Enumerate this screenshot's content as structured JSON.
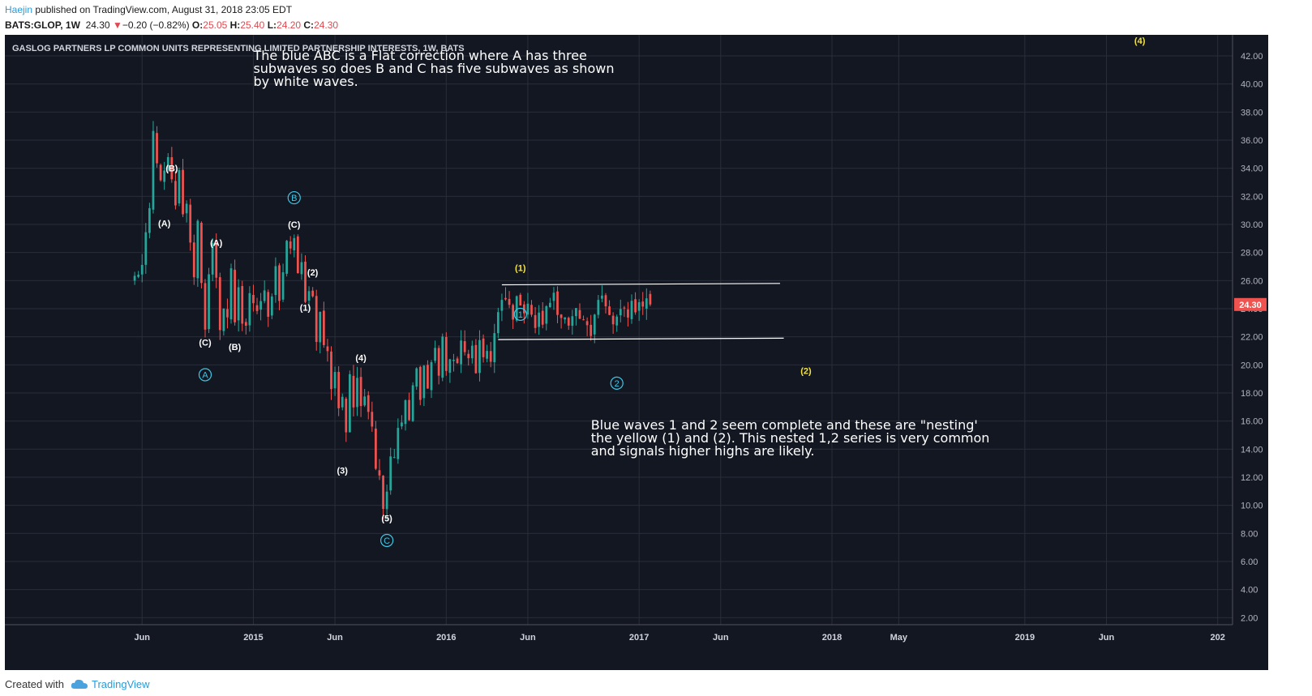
{
  "header": {
    "author": "Haejin",
    "published_text": " published on TradingView.com, August 31, 2018 23:05 EDT",
    "symbol": "BATS:GLOP, 1W",
    "last": "24.30",
    "change_arrow": "▼",
    "change": "−0.20 (−0.82%)",
    "o_label": "O:",
    "o_value": "25.05",
    "h_label": "H:",
    "h_value": "25.40",
    "l_label": "L:",
    "l_value": "24.20",
    "c_label": "C:",
    "c_value": "24.30"
  },
  "footer": {
    "created_with": "Created with",
    "brand": "TradingView"
  },
  "colors": {
    "background": "#131722",
    "up": "#26a69a",
    "down": "#ef5350",
    "grid": "#2a2e39",
    "axis_text": "#b2b5be",
    "blue_label": "#3cc8e6",
    "yellow_label": "#f5e342",
    "last_price_bg": "#ef5350"
  },
  "chart_data": {
    "type": "candlestick",
    "title": "GASLOG PARTNERS LP COMMON UNITS REPRESENTING LIMITED PARTNERSHIP INTERESTS, 1W, BATS",
    "y_ticks": [
      "2.00",
      "4.00",
      "6.00",
      "8.00",
      "10.00",
      "12.00",
      "14.00",
      "16.00",
      "18.00",
      "20.00",
      "22.00",
      "24.00",
      "26.00",
      "28.00",
      "30.00",
      "32.00",
      "34.00",
      "36.00",
      "38.00",
      "40.00",
      "42.00"
    ],
    "ylim": [
      1.5,
      43.5
    ],
    "x_ticks": [
      {
        "label": "Jun",
        "t": 0
      },
      {
        "label": "2015",
        "t": 30
      },
      {
        "label": "Jun",
        "t": 52
      },
      {
        "label": "2016",
        "t": 82
      },
      {
        "label": "Jun",
        "t": 104
      },
      {
        "label": "2017",
        "t": 134
      },
      {
        "label": "Jun",
        "t": 156
      },
      {
        "label": "2018",
        "t": 186
      },
      {
        "label": "May",
        "t": 204
      },
      {
        "label": "2019",
        "t": 238
      },
      {
        "label": "Jun",
        "t": 260
      },
      {
        "label": "202",
        "t": 290
      }
    ],
    "t_range": [
      -37,
      294
    ],
    "last_price": "24.30",
    "anchors": [
      [
        -2,
        26.2
      ],
      [
        0,
        27
      ],
      [
        2,
        31
      ],
      [
        3,
        36.5
      ],
      [
        5,
        32.8
      ],
      [
        7,
        34.5
      ],
      [
        9,
        31.5
      ],
      [
        10,
        33.6
      ],
      [
        11,
        31
      ],
      [
        12,
        31.4
      ],
      [
        14,
        26.5
      ],
      [
        15,
        30
      ],
      [
        16,
        25.5
      ],
      [
        17,
        22.2
      ],
      [
        18,
        26.8
      ],
      [
        19,
        28.7
      ],
      [
        20,
        26
      ],
      [
        21,
        22.6
      ],
      [
        22,
        24.2
      ],
      [
        23,
        23.5
      ],
      [
        24,
        26.5
      ],
      [
        25,
        22.7
      ],
      [
        26,
        25.6
      ],
      [
        27,
        23
      ],
      [
        28,
        22.5
      ],
      [
        29,
        25.4
      ],
      [
        31,
        24
      ],
      [
        33,
        25.3
      ],
      [
        34,
        23
      ],
      [
        36,
        26.8
      ],
      [
        37,
        24.8
      ],
      [
        39,
        28.5
      ],
      [
        40,
        28
      ],
      [
        41,
        29.2
      ],
      [
        42,
        26.5
      ],
      [
        43,
        27
      ],
      [
        44,
        24.3
      ],
      [
        45,
        25.6
      ],
      [
        46,
        24.8
      ],
      [
        47,
        22
      ],
      [
        48,
        23.6
      ],
      [
        49,
        21.5
      ],
      [
        50,
        20.8
      ],
      [
        51,
        18.5
      ],
      [
        52,
        19.6
      ],
      [
        53,
        17
      ],
      [
        54,
        17.8
      ],
      [
        55,
        14.8
      ],
      [
        56,
        19.4
      ],
      [
        57,
        17.4
      ],
      [
        58,
        19.3
      ],
      [
        59,
        17.4
      ],
      [
        60,
        17.6
      ],
      [
        61,
        17.1
      ],
      [
        62,
        15.8
      ],
      [
        63,
        12.8
      ],
      [
        64,
        12.2
      ],
      [
        65,
        10
      ],
      [
        66,
        10.7
      ],
      [
        67,
        13.5
      ],
      [
        68,
        13.4
      ],
      [
        69,
        15.2
      ],
      [
        70,
        15.8
      ],
      [
        71,
        17.3
      ],
      [
        72,
        16.5
      ],
      [
        73,
        18.5
      ],
      [
        74,
        19.8
      ],
      [
        75,
        17.5
      ],
      [
        76,
        19.8
      ],
      [
        77,
        18.5
      ],
      [
        78,
        20.2
      ],
      [
        79,
        20.8
      ],
      [
        80,
        19.5
      ],
      [
        81,
        22
      ],
      [
        82,
        19.2
      ],
      [
        83,
        20.3
      ],
      [
        84,
        20.8
      ],
      [
        85,
        20
      ],
      [
        86,
        21.6
      ],
      [
        87,
        21
      ],
      [
        88,
        20.2
      ],
      [
        89,
        21.2
      ],
      [
        90,
        19.6
      ],
      [
        91,
        21.5
      ],
      [
        92,
        20.1
      ],
      [
        93,
        21
      ],
      [
        94,
        20.5
      ],
      [
        95,
        22.2
      ],
      [
        96,
        23.6
      ],
      [
        97,
        24.3
      ],
      [
        98,
        24.6
      ],
      [
        99,
        24.1
      ],
      [
        100,
        23.6
      ],
      [
        101,
        24.5
      ],
      [
        102,
        24.6
      ],
      [
        103,
        23.9
      ],
      [
        104,
        24.4
      ],
      [
        105,
        23.3
      ],
      [
        106,
        22.8
      ],
      [
        107,
        23.4
      ],
      [
        108,
        23.1
      ],
      [
        109,
        23.9
      ],
      [
        110,
        24.5
      ],
      [
        111,
        25.2
      ],
      [
        112,
        24
      ],
      [
        113,
        23.5
      ],
      [
        114,
        23.2
      ],
      [
        115,
        22.5
      ],
      [
        116,
        23.2
      ],
      [
        117,
        23.6
      ],
      [
        118,
        23.2
      ],
      [
        119,
        22.9
      ],
      [
        120,
        23
      ],
      [
        121,
        22.5
      ],
      [
        122,
        23.8
      ],
      [
        123,
        24.6
      ],
      [
        124,
        24.8
      ],
      [
        125,
        24
      ],
      [
        126,
        23.4
      ],
      [
        127,
        22.9
      ],
      [
        128,
        23.3
      ],
      [
        129,
        23.6
      ],
      [
        130,
        23.9
      ],
      [
        131,
        23.7
      ],
      [
        132,
        24.5
      ],
      [
        133,
        24
      ],
      [
        134,
        24.3
      ],
      [
        135,
        24.2
      ],
      [
        136,
        24.9
      ],
      [
        137,
        24.3
      ]
    ],
    "trend_lines": [
      {
        "t1": 97,
        "p1": 25.7,
        "t2": 172,
        "p2": 25.8,
        "color": "#ffffff"
      },
      {
        "t1": 96,
        "p1": 21.8,
        "t2": 173,
        "p2": 21.9,
        "color": "#ffffff"
      }
    ],
    "wave_labels": [
      {
        "text": "(B)",
        "t": 8,
        "p": 34,
        "style": "white"
      },
      {
        "text": "(A)",
        "t": 6,
        "p": 30.1,
        "style": "white"
      },
      {
        "text": "(A)",
        "t": 20,
        "p": 28.7,
        "style": "white"
      },
      {
        "text": "(C)",
        "t": 17,
        "p": 21.6,
        "style": "white"
      },
      {
        "text": "(B)",
        "t": 25,
        "p": 21.3,
        "style": "white"
      },
      {
        "text": "(C)",
        "t": 41,
        "p": 30,
        "style": "white"
      },
      {
        "text": "(2)",
        "t": 46,
        "p": 26.6,
        "style": "white"
      },
      {
        "text": "(1)",
        "t": 44,
        "p": 24.1,
        "style": "white"
      },
      {
        "text": "(4)",
        "t": 59,
        "p": 20.5,
        "style": "white"
      },
      {
        "text": "(3)",
        "t": 54,
        "p": 12.5,
        "style": "white"
      },
      {
        "text": "(5)",
        "t": 66,
        "p": 9.1,
        "style": "white"
      },
      {
        "text": "A",
        "t": 17,
        "p": 19.3,
        "style": "blue-circle"
      },
      {
        "text": "B",
        "t": 41,
        "p": 31.9,
        "style": "blue-circle"
      },
      {
        "text": "C",
        "t": 66,
        "p": 7.5,
        "style": "blue-circle"
      },
      {
        "text": "1",
        "t": 102,
        "p": 23.6,
        "style": "blue-circle"
      },
      {
        "text": "2",
        "t": 128,
        "p": 18.7,
        "style": "blue-circle"
      },
      {
        "text": "(1)",
        "t": 102,
        "p": 26.9,
        "style": "yellow"
      },
      {
        "text": "(2)",
        "t": 179,
        "p": 19.6,
        "style": "yellow"
      },
      {
        "text": "(4)",
        "t": 269,
        "p": 43.1,
        "style": "yellow"
      }
    ],
    "annotations": [
      {
        "lines": [
          "The blue ABC is a Flat correction where A has three",
          "subwaves so does B and C has five subwaves as shown",
          "by white waves."
        ],
        "t": 30,
        "p": 41.7
      },
      {
        "lines": [
          "Blue waves 1 and 2 seem complete and these are \"nesting'",
          "the yellow (1) and (2). This nested 1,2 series is very common",
          "and signals higher highs are likely."
        ],
        "t": 121,
        "p": 15.4
      }
    ]
  }
}
